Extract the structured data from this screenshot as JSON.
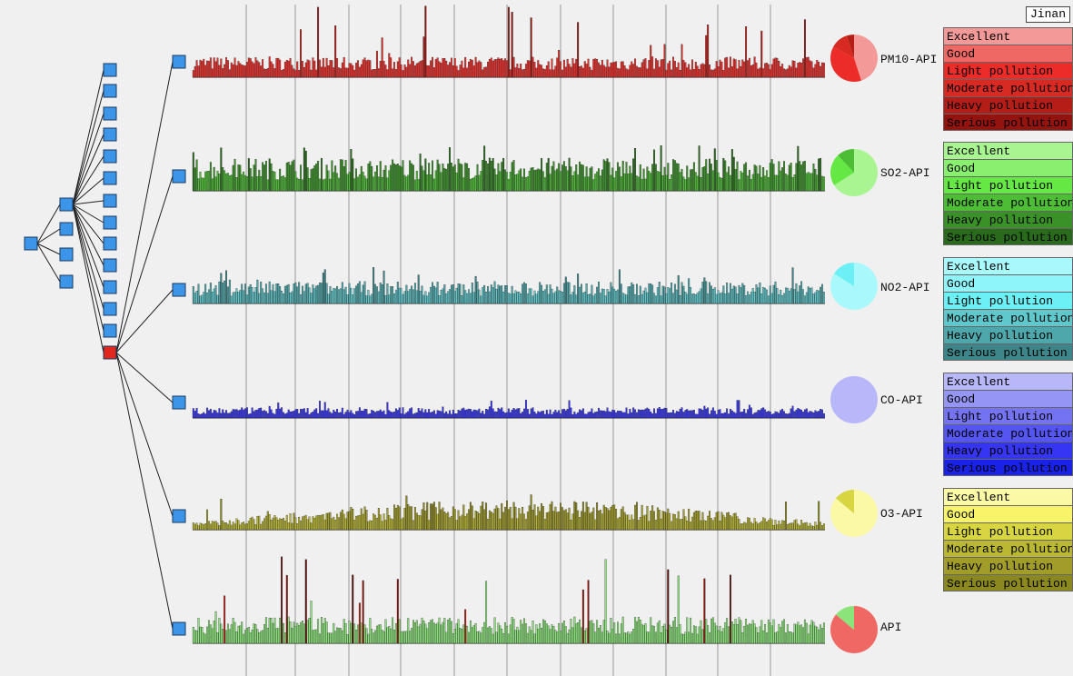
{
  "city": "Jinan",
  "legend_labels": [
    "Excellent",
    "Good",
    "Light pollution",
    "Moderate pollution",
    "Heavy pollution",
    "Serious pollution"
  ],
  "colors": {
    "PM10-API": [
      "#f39a98",
      "#ef6863",
      "#ec2c28",
      "#d62a22",
      "#b51d17",
      "#93140f"
    ],
    "SO2-API": [
      "#a8f592",
      "#88f06e",
      "#66e844",
      "#4cbd34",
      "#3a9128",
      "#2a6a1d"
    ],
    "NO2-API": [
      "#a9f8fb",
      "#8ef6fa",
      "#6cf0f5",
      "#5ec8cc",
      "#4ea7ab",
      "#3d8588"
    ],
    "CO-API": [
      "#b7b7fa",
      "#9595f5",
      "#7474f3",
      "#5555f2",
      "#3535f3",
      "#1a22e6"
    ],
    "O3-API": [
      "#fbf8a6",
      "#f8f46a",
      "#d8d542",
      "#bab733",
      "#a29d29",
      "#8b8820"
    ],
    "API": [
      "#f06863",
      "#ef6863",
      "#8be47a",
      "#b51d17",
      "#93140f",
      "#5e0f0b"
    ]
  },
  "chart_data": {
    "type": "bar",
    "x_range": [
      1,
      365
    ],
    "ylim": [
      0,
      500
    ],
    "grid": true,
    "series": [
      {
        "name": "PM10-API",
        "values_profile": {
          "mean": 105,
          "peak": 500
        },
        "pie": [
          0.45,
          0.38,
          0.12,
          0.05
        ]
      },
      {
        "name": "SO2-API",
        "values_profile": {
          "mean": 70,
          "peak": 130
        },
        "pie": [
          0.66,
          0.22,
          0.12
        ]
      },
      {
        "name": "NO2-API",
        "values_profile": {
          "mean": 45,
          "peak": 100
        },
        "pie": [
          0.84,
          0.16
        ]
      },
      {
        "name": "CO-API",
        "values_profile": {
          "mean": 15,
          "peak": 35
        },
        "pie": [
          1.0
        ]
      },
      {
        "name": "O3-API",
        "values_profile": {
          "mean": 45,
          "peak": 120
        },
        "pie": [
          0.86,
          0.14
        ]
      },
      {
        "name": "API",
        "values_profile": {
          "mean": 108,
          "peak": 500
        },
        "pie": [
          0.86,
          0.14
        ]
      }
    ]
  }
}
